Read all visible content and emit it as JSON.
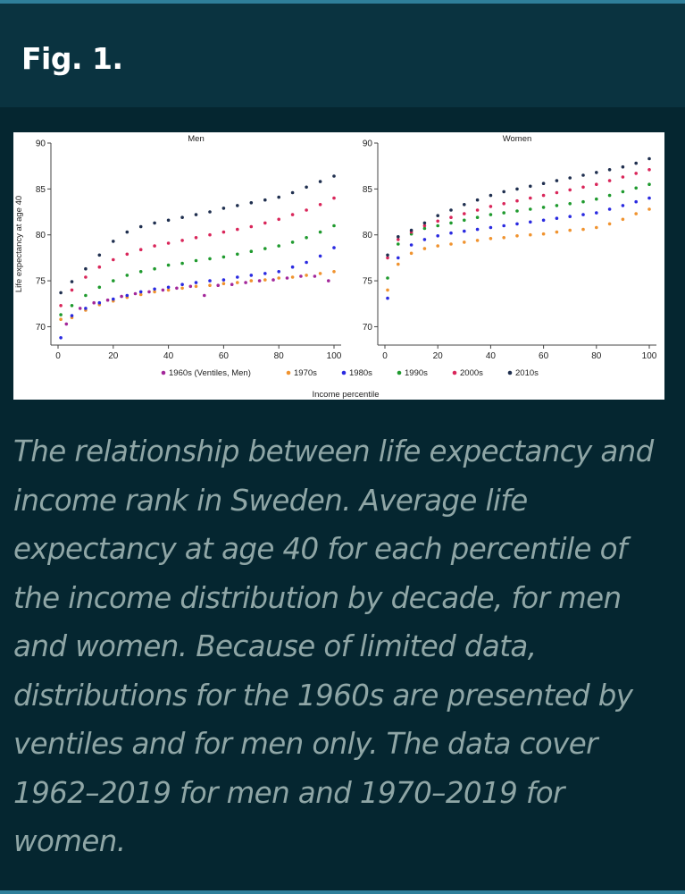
{
  "figure": {
    "label": "Fig. 1.",
    "caption": "The relationship between life expectancy and income rank in Sweden. Average life expectancy at age 40 for each percentile of the income distribution by decade, for men and women. Because of limited data, distributions for the 1960s are presented by ventiles and for men only. The data cover 1962–2019 for men and 1970–2019 for women."
  },
  "colors": {
    "background": "#052630",
    "header": "#0a3340",
    "accent_line": "#2f7f9a",
    "caption_text": "#8fa6a6"
  },
  "chart_data": {
    "type": "scatter",
    "ylabel": "Life expectancy at age 40",
    "xlabel": "Income percentile",
    "legend_position": "bottom",
    "grid": false,
    "shared_y_axis": true,
    "series_style": [
      {
        "name": "1960s (Ventiles, Men)",
        "color": "#a3279a"
      },
      {
        "name": "1970s",
        "color": "#f0932f"
      },
      {
        "name": "1980s",
        "color": "#2a2ae0"
      },
      {
        "name": "1990s",
        "color": "#1f9a2e"
      },
      {
        "name": "2000s",
        "color": "#d9265a"
      },
      {
        "name": "2010s",
        "color": "#1f2f4f"
      }
    ],
    "panels": [
      {
        "title": "Men",
        "xlim": [
          0,
          100
        ],
        "ylim": [
          68,
          90
        ],
        "xticks": [
          0,
          20,
          40,
          60,
          80,
          100
        ],
        "yticks": [
          70,
          75,
          80,
          85,
          90
        ],
        "series": [
          {
            "name": "1960s (Ventiles, Men)",
            "x": [
              3,
              8,
              13,
              18,
              23,
              28,
              33,
              38,
              43,
              48,
              53,
              58,
              63,
              68,
              73,
              78,
              83,
              88,
              93,
              98
            ],
            "y": [
              70.3,
              72.0,
              72.6,
              72.9,
              73.3,
              73.6,
              73.8,
              74.0,
              74.2,
              74.4,
              73.4,
              74.5,
              74.6,
              74.8,
              75.0,
              75.1,
              75.3,
              75.5,
              75.5,
              75.0
            ]
          },
          {
            "name": "1970s",
            "x": [
              1,
              5,
              10,
              15,
              20,
              25,
              30,
              35,
              40,
              45,
              50,
              55,
              60,
              65,
              70,
              75,
              80,
              85,
              90,
              95,
              100
            ],
            "y": [
              70.8,
              71.0,
              71.8,
              72.4,
              72.8,
              73.2,
              73.5,
              73.8,
              74.0,
              74.2,
              74.4,
              74.5,
              74.7,
              74.8,
              75.0,
              75.1,
              75.3,
              75.4,
              75.6,
              75.8,
              76.0
            ]
          },
          {
            "name": "1980s",
            "x": [
              1,
              5,
              10,
              15,
              20,
              25,
              30,
              35,
              40,
              45,
              50,
              55,
              60,
              65,
              70,
              75,
              80,
              85,
              90,
              95,
              100
            ],
            "y": [
              68.8,
              71.2,
              72.0,
              72.6,
              73.0,
              73.4,
              73.8,
              74.1,
              74.3,
              74.6,
              74.8,
              75.0,
              75.1,
              75.4,
              75.6,
              75.8,
              76.0,
              76.5,
              77.0,
              77.7,
              78.6
            ]
          },
          {
            "name": "1990s",
            "x": [
              1,
              5,
              10,
              15,
              20,
              25,
              30,
              35,
              40,
              45,
              50,
              55,
              60,
              65,
              70,
              75,
              80,
              85,
              90,
              95,
              100
            ],
            "y": [
              71.3,
              72.3,
              73.4,
              74.3,
              75.0,
              75.6,
              76.0,
              76.3,
              76.7,
              76.9,
              77.2,
              77.4,
              77.6,
              77.9,
              78.2,
              78.5,
              78.8,
              79.2,
              79.7,
              80.3,
              81.0
            ]
          },
          {
            "name": "2000s",
            "x": [
              1,
              5,
              10,
              15,
              20,
              25,
              30,
              35,
              40,
              45,
              50,
              55,
              60,
              65,
              70,
              75,
              80,
              85,
              90,
              95,
              100
            ],
            "y": [
              72.3,
              74.0,
              75.4,
              76.5,
              77.3,
              77.9,
              78.4,
              78.8,
              79.1,
              79.4,
              79.7,
              80.0,
              80.3,
              80.6,
              80.9,
              81.3,
              81.7,
              82.2,
              82.7,
              83.3,
              84.0
            ]
          },
          {
            "name": "2010s",
            "x": [
              1,
              5,
              10,
              15,
              20,
              25,
              30,
              35,
              40,
              45,
              50,
              55,
              60,
              65,
              70,
              75,
              80,
              85,
              90,
              95,
              100
            ],
            "y": [
              73.7,
              74.9,
              76.3,
              77.8,
              79.3,
              80.3,
              80.9,
              81.3,
              81.6,
              81.9,
              82.2,
              82.5,
              82.9,
              83.2,
              83.5,
              83.8,
              84.1,
              84.6,
              85.2,
              85.8,
              86.4
            ]
          }
        ]
      },
      {
        "title": "Women",
        "xlim": [
          0,
          100
        ],
        "ylim": [
          68,
          90
        ],
        "xticks": [
          0,
          20,
          40,
          60,
          80,
          100
        ],
        "yticks": [
          70,
          75,
          80,
          85,
          90
        ],
        "series": [
          {
            "name": "1970s",
            "x": [
              1,
              5,
              10,
              15,
              20,
              25,
              30,
              35,
              40,
              45,
              50,
              55,
              60,
              65,
              70,
              75,
              80,
              85,
              90,
              95,
              100
            ],
            "y": [
              74.0,
              76.8,
              78.0,
              78.5,
              78.8,
              79.0,
              79.2,
              79.4,
              79.6,
              79.7,
              79.9,
              80.0,
              80.1,
              80.3,
              80.5,
              80.6,
              80.8,
              81.2,
              81.7,
              82.3,
              82.8
            ]
          },
          {
            "name": "1980s",
            "x": [
              1,
              5,
              10,
              15,
              20,
              25,
              30,
              35,
              40,
              45,
              50,
              55,
              60,
              65,
              70,
              75,
              80,
              85,
              90,
              95,
              100
            ],
            "y": [
              73.1,
              77.5,
              78.9,
              79.5,
              79.9,
              80.2,
              80.4,
              80.6,
              80.8,
              81.0,
              81.2,
              81.4,
              81.6,
              81.8,
              82.0,
              82.2,
              82.4,
              82.8,
              83.2,
              83.6,
              84.0
            ]
          },
          {
            "name": "1990s",
            "x": [
              1,
              5,
              10,
              15,
              20,
              25,
              30,
              35,
              40,
              45,
              50,
              55,
              60,
              65,
              70,
              75,
              80,
              85,
              90,
              95,
              100
            ],
            "y": [
              75.3,
              79.0,
              80.1,
              80.7,
              81.0,
              81.3,
              81.6,
              81.9,
              82.2,
              82.4,
              82.6,
              82.8,
              83.0,
              83.2,
              83.4,
              83.6,
              83.9,
              84.3,
              84.7,
              85.1,
              85.5
            ]
          },
          {
            "name": "2000s",
            "x": [
              1,
              5,
              10,
              15,
              20,
              25,
              30,
              35,
              40,
              45,
              50,
              55,
              60,
              65,
              70,
              75,
              80,
              85,
              90,
              95,
              100
            ],
            "y": [
              77.5,
              79.5,
              80.3,
              81.0,
              81.5,
              81.9,
              82.3,
              82.7,
              83.1,
              83.4,
              83.7,
              84.0,
              84.3,
              84.6,
              84.9,
              85.2,
              85.5,
              85.9,
              86.3,
              86.7,
              87.1
            ]
          },
          {
            "name": "2010s",
            "x": [
              1,
              5,
              10,
              15,
              20,
              25,
              30,
              35,
              40,
              45,
              50,
              55,
              60,
              65,
              70,
              75,
              80,
              85,
              90,
              95,
              100
            ],
            "y": [
              77.8,
              79.8,
              80.5,
              81.3,
              82.1,
              82.7,
              83.3,
              83.8,
              84.3,
              84.7,
              85.0,
              85.3,
              85.6,
              85.9,
              86.2,
              86.5,
              86.8,
              87.1,
              87.4,
              87.8,
              88.3
            ]
          }
        ]
      }
    ]
  }
}
